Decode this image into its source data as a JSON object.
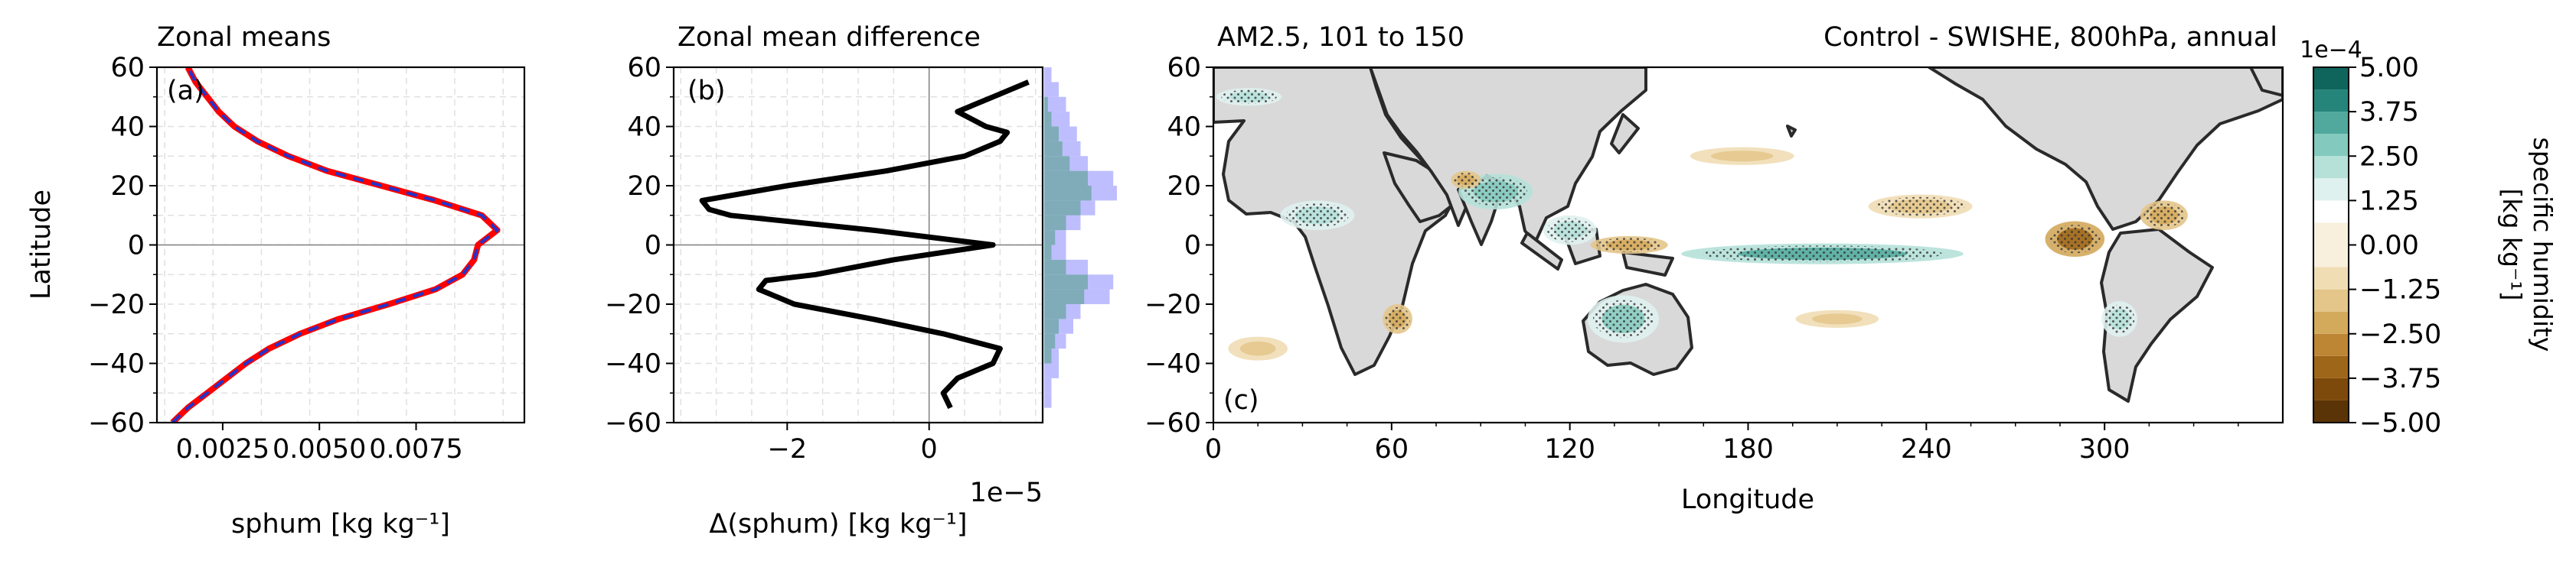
{
  "chart_data": [
    {
      "type": "line",
      "title": "Zonal means",
      "panel_label": "(a)",
      "xlabel": "sphum [kg kg⁻¹]",
      "ylabel": "Latitude",
      "xlim": [
        0.0008,
        0.0103
      ],
      "ylim": [
        -60,
        60
      ],
      "xticks": [
        0.0025,
        0.005,
        0.0075
      ],
      "xtick_labels": [
        "0.0025",
        "0.0050",
        "0.0075"
      ],
      "yticks": [
        -60,
        -40,
        -20,
        0,
        20,
        40,
        60
      ],
      "ytick_labels": [
        "−60",
        "−40",
        "−20",
        "0",
        "20",
        "40",
        "60"
      ],
      "grid": true,
      "series": [
        {
          "color": "#ff0000",
          "style": "solid",
          "lat": [
            -60,
            -55,
            -50,
            -45,
            -40,
            -35,
            -30,
            -25,
            -20,
            -15,
            -10,
            -5,
            0,
            5,
            10,
            15,
            20,
            25,
            30,
            35,
            40,
            45,
            50,
            55,
            60
          ],
          "values": [
            0.0012,
            0.0016,
            0.0021,
            0.0026,
            0.0031,
            0.0037,
            0.0045,
            0.0055,
            0.0068,
            0.008,
            0.0087,
            0.009,
            0.0091,
            0.0096,
            0.0092,
            0.008,
            0.0066,
            0.0052,
            0.0042,
            0.0034,
            0.0028,
            0.0024,
            0.0021,
            0.0018,
            0.0016
          ]
        },
        {
          "color": "#2233cc",
          "style": "dashed",
          "lat": [
            -60,
            -55,
            -50,
            -45,
            -40,
            -35,
            -30,
            -25,
            -20,
            -15,
            -10,
            -5,
            0,
            5,
            10,
            15,
            20,
            25,
            30,
            35,
            40,
            45,
            50,
            55,
            60
          ],
          "values": [
            0.0012,
            0.0016,
            0.0021,
            0.0026,
            0.0031,
            0.0037,
            0.0045,
            0.0055,
            0.0068,
            0.008,
            0.0087,
            0.009,
            0.0091,
            0.0096,
            0.0092,
            0.008,
            0.0066,
            0.0052,
            0.0042,
            0.0034,
            0.0028,
            0.0024,
            0.0021,
            0.0018,
            0.0016
          ]
        }
      ]
    },
    {
      "type": "line",
      "title": "Zonal mean difference",
      "panel_label": "(b)",
      "xlabel": "Δ(sphum) [kg kg⁻¹]",
      "x_offset_label": "1e−5",
      "xlim": [
        -3.6,
        1.6
      ],
      "ylim": [
        -60,
        60
      ],
      "xticks": [
        -2,
        0
      ],
      "xtick_labels": [
        "−2",
        "0"
      ],
      "yticks": [
        -60,
        -40,
        -20,
        0,
        20,
        40,
        60
      ],
      "ytick_labels": [
        "−60",
        "−40",
        "−20",
        "0",
        "20",
        "40",
        "60"
      ],
      "grid": true,
      "series": [
        {
          "color": "#000000",
          "lat": [
            -55,
            -50,
            -45,
            -40,
            -35,
            -30,
            -25,
            -20,
            -15,
            -12,
            -10,
            -5,
            0,
            5,
            10,
            12,
            15,
            20,
            25,
            30,
            35,
            38,
            40,
            45,
            50,
            55
          ],
          "values": [
            0.3,
            0.2,
            0.4,
            0.9,
            1.0,
            0.2,
            -0.8,
            -1.9,
            -2.4,
            -2.3,
            -1.6,
            -0.5,
            0.9,
            -0.8,
            -2.8,
            -3.1,
            -3.2,
            -2.0,
            -0.6,
            0.5,
            1.0,
            1.1,
            0.8,
            0.4,
            0.9,
            1.4
          ]
        }
      ],
      "side_histogram": {
        "color": "#b3b3ff",
        "overlay_color": "#6aa6a0",
        "lat_edges": [
          -60,
          -55,
          -50,
          -45,
          -40,
          -35,
          -30,
          -25,
          -20,
          -15,
          -10,
          -5,
          0,
          5,
          10,
          15,
          20,
          25,
          30,
          35,
          40,
          45,
          50,
          55,
          60
        ],
        "values": [
          0,
          0.1,
          0.1,
          0.2,
          0.2,
          0.3,
          0.4,
          0.5,
          0.9,
          0.95,
          0.6,
          0.3,
          0.3,
          0.5,
          0.7,
          1.0,
          0.95,
          0.6,
          0.5,
          0.45,
          0.35,
          0.3,
          0.2,
          0.1
        ],
        "overlay_values": [
          0,
          0,
          0,
          0,
          0.1,
          0.15,
          0.2,
          0.3,
          0.55,
          0.6,
          0.3,
          0.1,
          0.15,
          0.3,
          0.5,
          0.65,
          0.6,
          0.35,
          0.25,
          0.2,
          0.1,
          0.05,
          0,
          0
        ]
      }
    },
    {
      "type": "heatmap",
      "title_left": "AM2.5, 101 to 150",
      "title_right": "Control - SWISHE, 800hPa, annual",
      "panel_label": "(c)",
      "xlabel": "Longitude",
      "xlim": [
        0,
        360
      ],
      "ylim": [
        -60,
        60
      ],
      "xticks": [
        0,
        60,
        120,
        180,
        240,
        300
      ],
      "xtick_labels": [
        "0",
        "60",
        "120",
        "180",
        "240",
        "300"
      ],
      "yticks": [
        -60,
        -40,
        -20,
        0,
        20,
        40,
        60
      ],
      "ytick_labels": [
        "−60",
        "−40",
        "−20",
        "0",
        "20",
        "40",
        "60"
      ],
      "colorbar": {
        "label": "specific humidity\n[kg kg⁻¹]",
        "offset_label": "1e−4",
        "ticks": [
          -5.0,
          -3.75,
          -2.5,
          -1.25,
          0.0,
          1.25,
          2.5,
          3.75,
          5.0
        ],
        "tick_labels": [
          "−5.00",
          "−3.75",
          "−2.50",
          "−1.25",
          "0.00",
          "1.25",
          "2.50",
          "3.75",
          "5.00"
        ],
        "levels": [
          -5.0,
          -4.375,
          -3.75,
          -3.125,
          -2.5,
          -1.875,
          -1.25,
          -0.625,
          0.625,
          1.25,
          1.875,
          2.5,
          3.125,
          3.75,
          4.375,
          5.0
        ],
        "colors": [
          "#5a3306",
          "#7d4a0b",
          "#9e6619",
          "#bc8635",
          "#d3a95c",
          "#e4c58a",
          "#f0ddb4",
          "#f8efdc",
          "#ffffff",
          "#dff1ee",
          "#b5e1d9",
          "#84c9bd",
          "#50a99c",
          "#26857a",
          "#0f655b",
          "#01493f"
        ]
      },
      "land_color": "#d9d9d9",
      "hatching": "significant",
      "anomalies": [
        {
          "lon": 205,
          "lat": -3,
          "w": 95,
          "h": 7,
          "value": 2.2
        },
        {
          "lon": 95,
          "lat": 18,
          "w": 25,
          "h": 12,
          "value": 2.0
        },
        {
          "lon": 138,
          "lat": -25,
          "w": 24,
          "h": 16,
          "value": 1.8
        },
        {
          "lon": 35,
          "lat": 10,
          "w": 25,
          "h": 10,
          "value": 1.5
        },
        {
          "lon": 120,
          "lat": 5,
          "w": 18,
          "h": 10,
          "value": 1.4
        },
        {
          "lon": 305,
          "lat": -25,
          "w": 12,
          "h": 12,
          "value": 1.6
        },
        {
          "lon": 12,
          "lat": 50,
          "w": 22,
          "h": 6,
          "value": 1.3
        },
        {
          "lon": 290,
          "lat": 2,
          "w": 20,
          "h": 12,
          "value": -2.2
        },
        {
          "lon": 62,
          "lat": -25,
          "w": 10,
          "h": 10,
          "value": -1.4
        },
        {
          "lon": 140,
          "lat": 0,
          "w": 26,
          "h": 6,
          "value": -1.5
        },
        {
          "lon": 178,
          "lat": 30,
          "w": 35,
          "h": 6,
          "value": -1.1
        },
        {
          "lon": 238,
          "lat": 13,
          "w": 35,
          "h": 8,
          "value": -1.2
        },
        {
          "lon": 85,
          "lat": 22,
          "w": 10,
          "h": 6,
          "value": -1.3
        },
        {
          "lon": 210,
          "lat": -25,
          "w": 28,
          "h": 6,
          "value": -0.9
        },
        {
          "lon": 15,
          "lat": -35,
          "w": 20,
          "h": 8,
          "value": -1.0
        },
        {
          "lon": 320,
          "lat": 10,
          "w": 16,
          "h": 10,
          "value": -1.6
        }
      ]
    }
  ]
}
